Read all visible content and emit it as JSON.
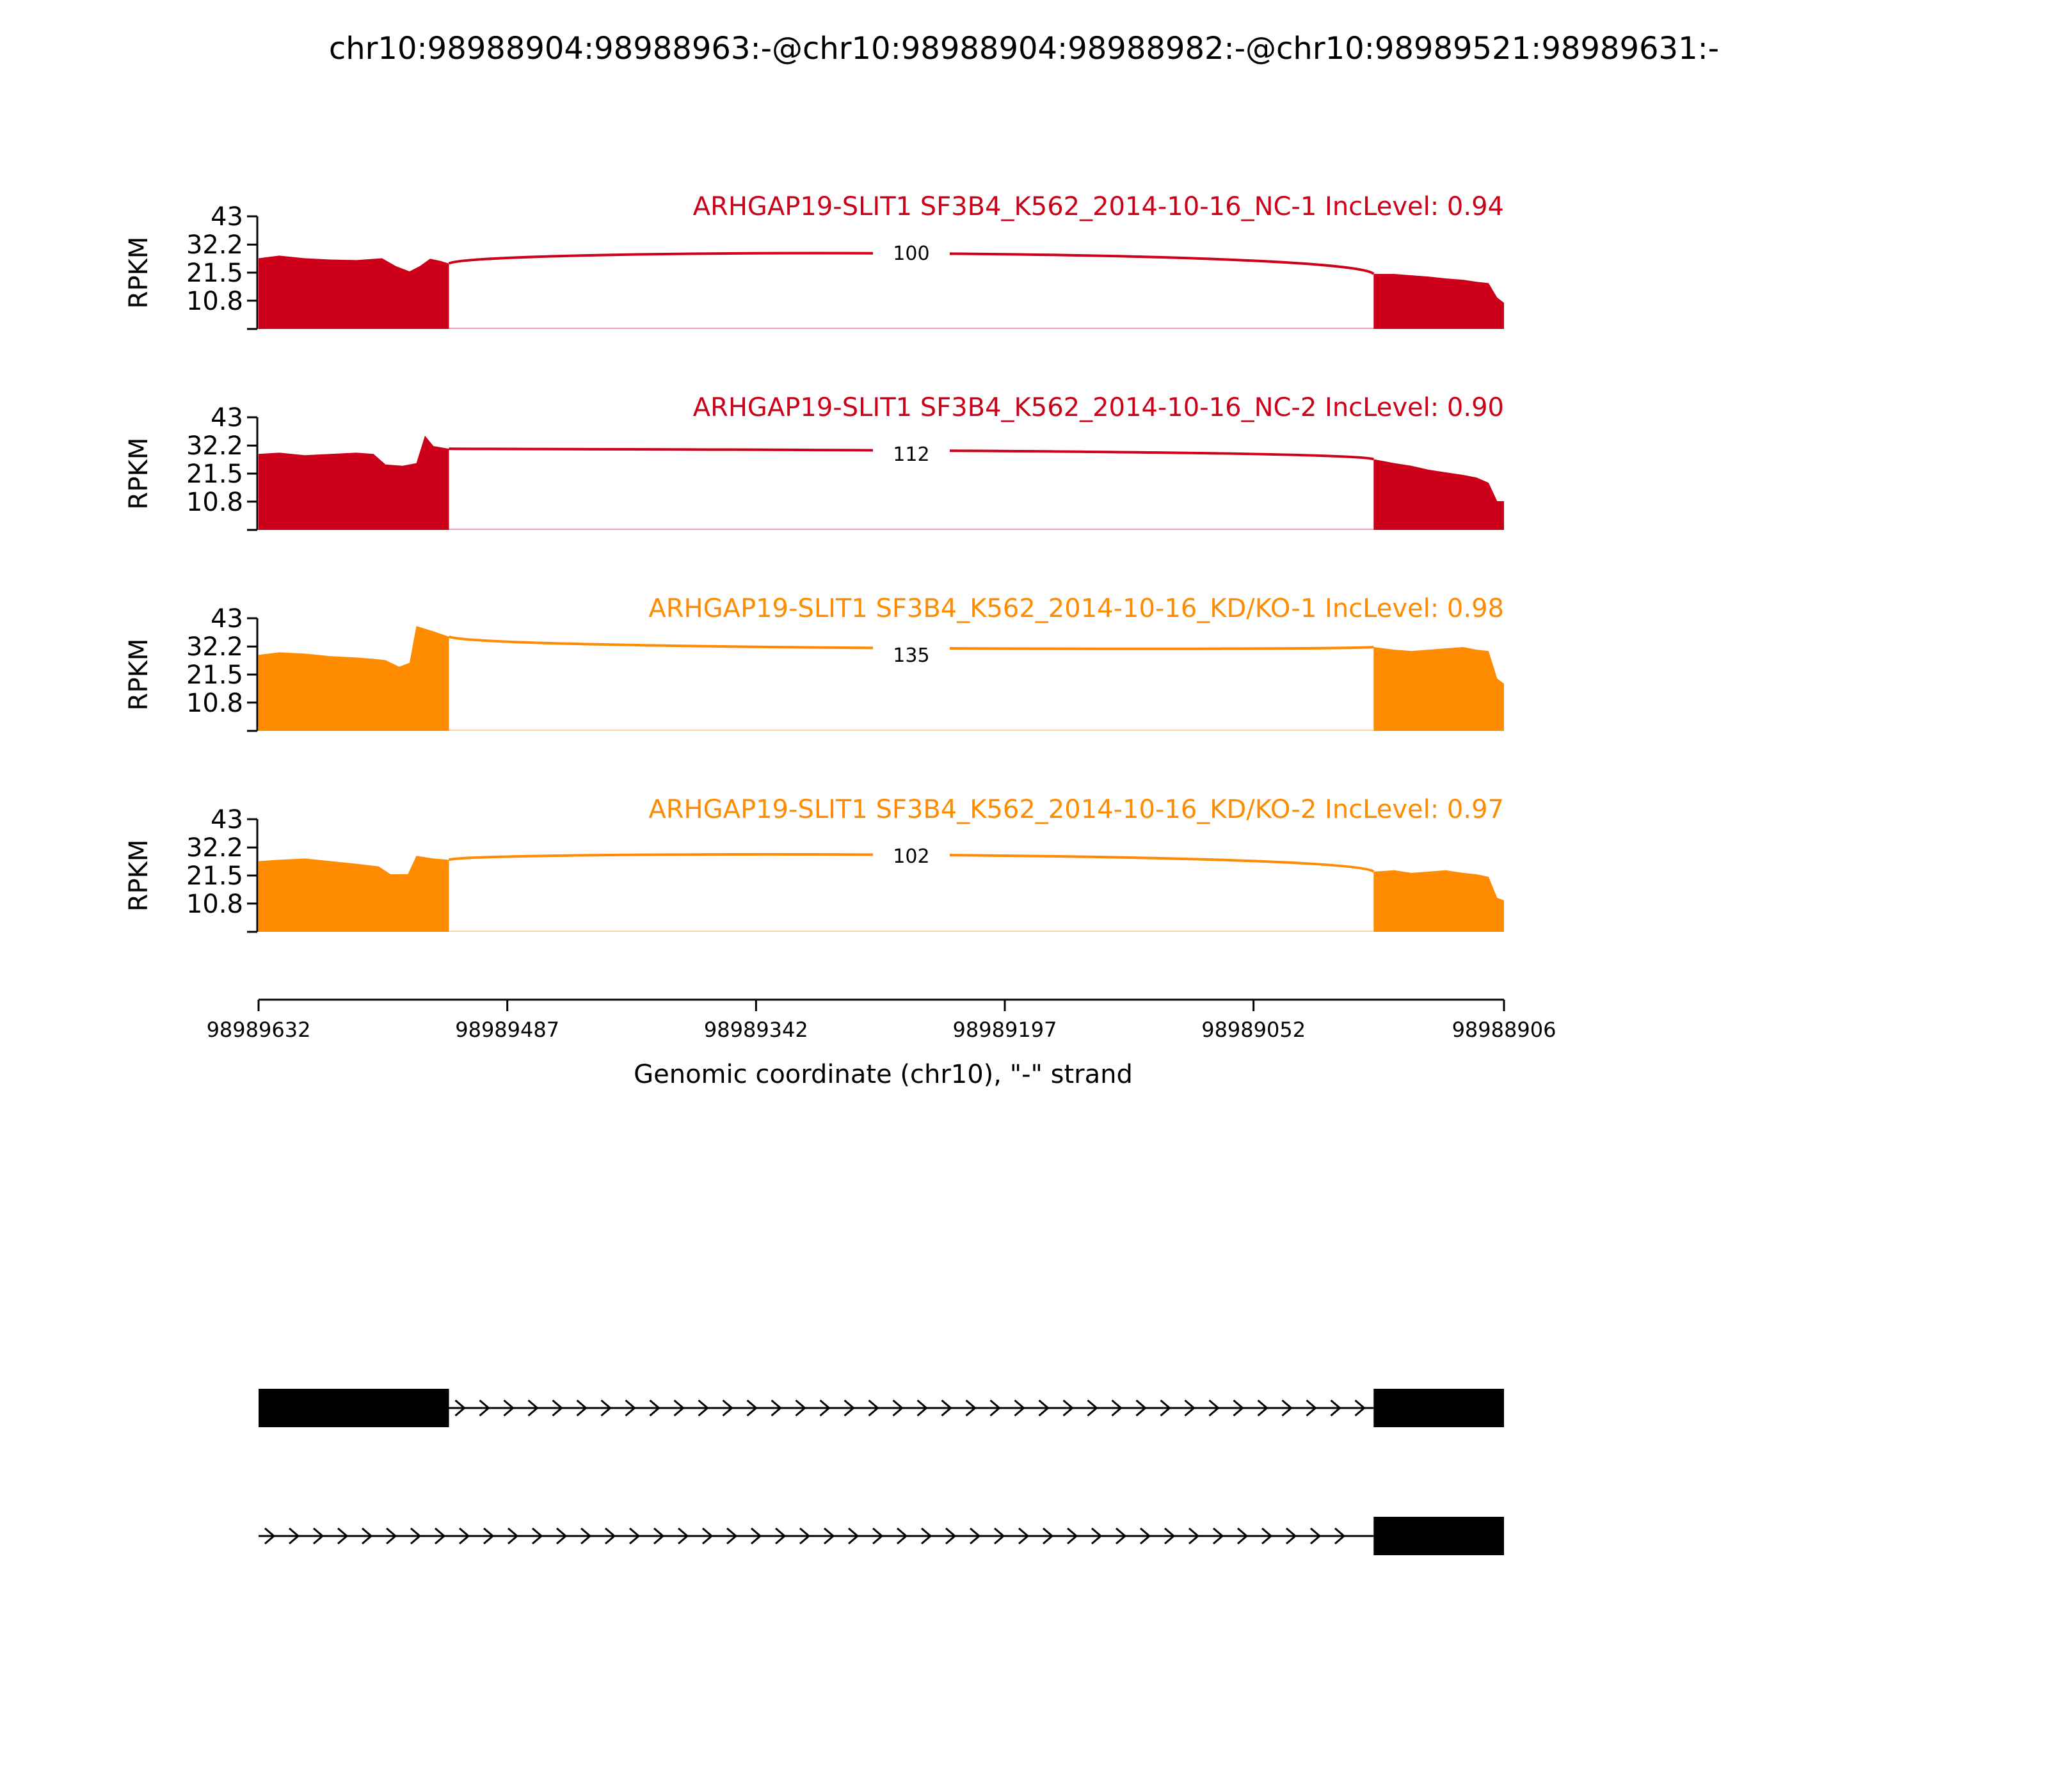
{
  "title": "chr10:98988904:98988963:-@chr10:98988904:98988982:-@chr10:98989521:98989631:-",
  "colors": {
    "nc": "#cc0018",
    "kd": "#ff8b00",
    "axis": "#000000",
    "gene": "#000000"
  },
  "chart_data": {
    "type": "area",
    "title": "chr10:98988904:98988963:-@chr10:98988904:98988982:-@chr10:98989521:98989631:-",
    "ylabel": "RPKM",
    "xlabel": "Genomic coordinate (chr10), \"-\" strand",
    "xlim": [
      98989632,
      98988906
    ],
    "x_ticks": [
      "98989632",
      "98989487",
      "98989342",
      "98989197",
      "98989052",
      "98988906"
    ],
    "y_ticks": [
      "43",
      "32.2",
      "21.5",
      "10.8"
    ],
    "ylim": [
      0,
      43
    ],
    "exon1_range": [
      98989632,
      98989521
    ],
    "exon2_range": [
      98988982,
      98988906
    ],
    "series": [
      {
        "label": "ARHGAP19-SLIT1 SF3B4_K562_2014-10-16_NC-1 IncLevel: 0.94",
        "group": "nc",
        "junctions": [
          {
            "from": 98989521,
            "to": 98988982,
            "count": "100",
            "weight": 3
          }
        ],
        "exon1": [
          [
            98989632,
            27
          ],
          [
            98989620,
            28
          ],
          [
            98989605,
            27
          ],
          [
            98989590,
            26.5
          ],
          [
            98989575,
            26.3
          ],
          [
            98989560,
            27
          ],
          [
            98989552,
            24
          ],
          [
            98989544,
            22
          ],
          [
            98989538,
            24
          ],
          [
            98989532,
            26.8
          ],
          [
            98989526,
            26
          ],
          [
            98989521,
            25
          ]
        ],
        "exon2": [
          [
            98988982,
            21
          ],
          [
            98988970,
            21
          ],
          [
            98988960,
            20.5
          ],
          [
            98988950,
            20
          ],
          [
            98988940,
            19.3
          ],
          [
            98988930,
            18.8
          ],
          [
            98988922,
            18
          ],
          [
            98988915,
            17.5
          ],
          [
            98988910,
            12
          ],
          [
            98988906,
            10
          ]
        ]
      },
      {
        "label": "ARHGAP19-SLIT1 SF3B4_K562_2014-10-16_NC-2 IncLevel: 0.90",
        "group": "nc",
        "junctions": [
          {
            "from": 98989521,
            "to": 98988982,
            "count": "112",
            "weight": 3
          }
        ],
        "exon1": [
          [
            98989632,
            29
          ],
          [
            98989620,
            29.5
          ],
          [
            98989605,
            28.5
          ],
          [
            98989590,
            29
          ],
          [
            98989575,
            29.5
          ],
          [
            98989565,
            29
          ],
          [
            98989558,
            25
          ],
          [
            98989548,
            24.5
          ],
          [
            98989540,
            25.5
          ],
          [
            98989535,
            36
          ],
          [
            98989530,
            32
          ],
          [
            98989521,
            31
          ]
        ],
        "exon2": [
          [
            98988982,
            27
          ],
          [
            98988970,
            25.5
          ],
          [
            98988960,
            24.5
          ],
          [
            98988950,
            23
          ],
          [
            98988940,
            22
          ],
          [
            98988930,
            21
          ],
          [
            98988922,
            20
          ],
          [
            98988915,
            18
          ],
          [
            98988910,
            11
          ],
          [
            98988906,
            11
          ]
        ]
      },
      {
        "label": "ARHGAP19-SLIT1 SF3B4_K562_2014-10-16_KD/KO-1 IncLevel: 0.98",
        "group": "kd",
        "junctions": [
          {
            "from": 98989521,
            "to": 98988982,
            "count": "135",
            "weight": 3
          }
        ],
        "exon1": [
          [
            98989632,
            29
          ],
          [
            98989620,
            30
          ],
          [
            98989605,
            29.5
          ],
          [
            98989590,
            28.5
          ],
          [
            98989575,
            28
          ],
          [
            98989565,
            27.5
          ],
          [
            98989558,
            27
          ],
          [
            98989550,
            24.5
          ],
          [
            98989544,
            26
          ],
          [
            98989540,
            40
          ],
          [
            98989530,
            38
          ],
          [
            98989521,
            36
          ]
        ],
        "exon2": [
          [
            98988982,
            32
          ],
          [
            98988970,
            31
          ],
          [
            98988960,
            30.5
          ],
          [
            98988950,
            31
          ],
          [
            98988940,
            31.5
          ],
          [
            98988930,
            32
          ],
          [
            98988922,
            31
          ],
          [
            98988915,
            30.5
          ],
          [
            98988910,
            20
          ],
          [
            98988906,
            18
          ]
        ]
      },
      {
        "label": "ARHGAP19-SLIT1 SF3B4_K562_2014-10-16_KD/KO-2 IncLevel: 0.97",
        "group": "kd",
        "junctions": [
          {
            "from": 98989521,
            "to": 98988982,
            "count": "102",
            "weight": 3
          }
        ],
        "exon1": [
          [
            98989632,
            27
          ],
          [
            98989620,
            27.5
          ],
          [
            98989605,
            28
          ],
          [
            98989590,
            27
          ],
          [
            98989575,
            26
          ],
          [
            98989562,
            25
          ],
          [
            98989555,
            22
          ],
          [
            98989545,
            22
          ],
          [
            98989540,
            29
          ],
          [
            98989530,
            28
          ],
          [
            98989521,
            27.5
          ]
        ],
        "exon2": [
          [
            98988982,
            23
          ],
          [
            98988970,
            23.5
          ],
          [
            98988960,
            22.5
          ],
          [
            98988950,
            23
          ],
          [
            98988940,
            23.5
          ],
          [
            98988930,
            22.5
          ],
          [
            98988922,
            22
          ],
          [
            98988915,
            21
          ],
          [
            98988910,
            13
          ],
          [
            98988906,
            12
          ]
        ]
      }
    ],
    "isoforms": [
      {
        "exons": [
          [
            98989632,
            98989521
          ],
          [
            98988982,
            98988906
          ]
        ]
      },
      {
        "exons": [
          [
            98988982,
            98988906
          ]
        ]
      }
    ]
  }
}
